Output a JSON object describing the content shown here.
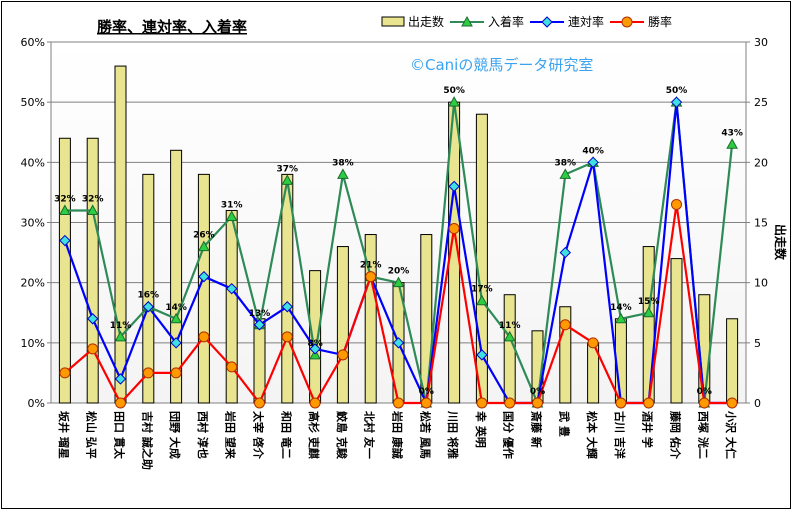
{
  "chart_data": {
    "type": "bar",
    "title": "勝率、連対率、入着率",
    "watermark": "©Caniの競馬データ研究室",
    "ylabel_right": "出走数",
    "left_axis": {
      "ylim": [
        0,
        60
      ],
      "ticks": [
        "0%",
        "10%",
        "20%",
        "30%",
        "40%",
        "50%",
        "60%"
      ]
    },
    "right_axis": {
      "ylim": [
        0,
        30
      ],
      "ticks": [
        "0",
        "5",
        "10",
        "15",
        "20",
        "25",
        "30"
      ]
    },
    "categories": [
      "坂井 瑠星",
      "松山 弘平",
      "田口 貫太",
      "吉村 誠之助",
      "団野 大成",
      "西村 淳也",
      "岩田 望来",
      "太宰 啓介",
      "和田 竜二",
      "高杉 吏麒",
      "鮫島 克駿",
      "北村 友一",
      "岩田 康誠",
      "松若 風馬",
      "川田 将雅",
      "幸 英明",
      "国分 優作",
      "斎藤 新",
      "武 豊",
      "松本 大輝",
      "古川 吉洋",
      "酒井 学",
      "藤岡 佑介",
      "西塚 洸二",
      "小沢 大仁"
    ],
    "legend": [
      "出走数",
      "入着率",
      "連対率",
      "勝率"
    ],
    "series": [
      {
        "name": "出走数",
        "axis": "right",
        "color": "#e8e490",
        "values": [
          22,
          22,
          28,
          19,
          21,
          19,
          16,
          7,
          19,
          11,
          13,
          14,
          10,
          14,
          25,
          24,
          9,
          6,
          8,
          5,
          7,
          13,
          12,
          9,
          7
        ]
      },
      {
        "name": "入着率",
        "axis": "left",
        "color": "#2e8b57",
        "values": [
          32,
          32,
          11,
          16,
          14,
          26,
          31,
          13,
          37,
          8,
          38,
          21,
          20,
          0,
          50,
          17,
          11,
          0,
          38,
          40,
          14,
          15,
          50,
          0,
          43
        ],
        "labels": [
          "32%",
          "32%",
          "11%",
          "16%",
          "14%",
          "26%",
          "31%",
          "13%",
          "37%",
          "8%",
          "38%",
          "21%",
          "20%",
          "0%",
          "50%",
          "17%",
          "11%",
          "0%",
          "38%",
          "40%",
          "14%",
          "15%",
          "50%",
          "0%",
          "43%"
        ]
      },
      {
        "name": "連対率",
        "axis": "left",
        "color": "#0000ff",
        "values": [
          27,
          14,
          4,
          16,
          10,
          21,
          19,
          13,
          16,
          9,
          8,
          21,
          10,
          0,
          36,
          8,
          0,
          0,
          25,
          40,
          0,
          0,
          50,
          0,
          0
        ]
      },
      {
        "name": "勝率",
        "axis": "left",
        "color": "#ff0000",
        "values": [
          5,
          9,
          0,
          5,
          5,
          11,
          6,
          0,
          11,
          0,
          8,
          21,
          0,
          0,
          29,
          0,
          0,
          0,
          13,
          10,
          0,
          0,
          33,
          0,
          0
        ]
      }
    ]
  }
}
